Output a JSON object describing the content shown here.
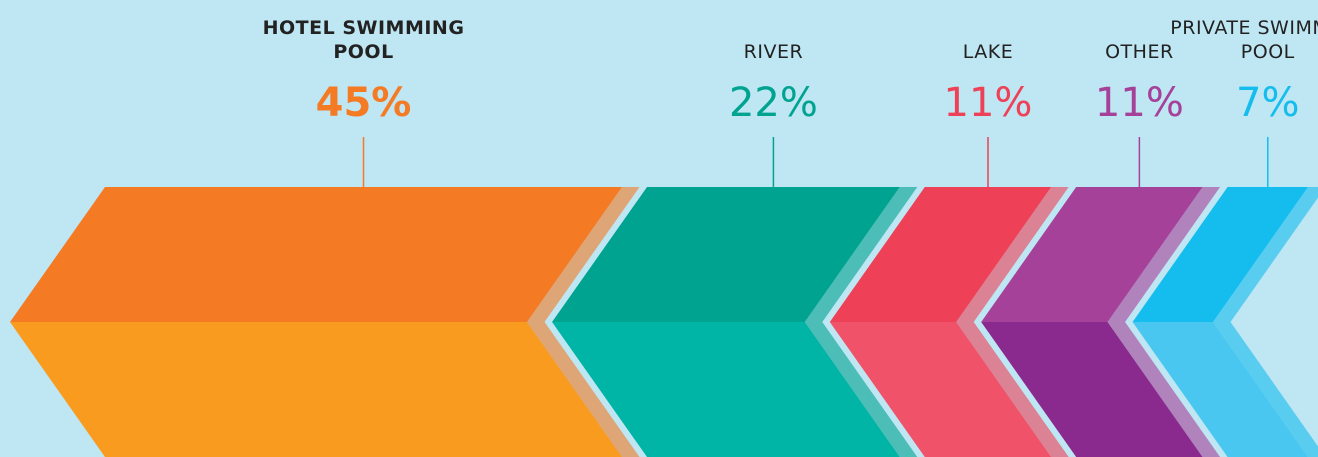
{
  "chart_data": {
    "type": "chevron",
    "categories": [
      "HOTEL SWIMMING POOL",
      "RIVER",
      "LAKE",
      "OTHER",
      "PRIVATE SWIMMING POOL"
    ],
    "values": [
      45,
      22,
      11,
      11,
      7
    ],
    "value_labels": [
      "45%",
      "22%",
      "11%",
      "11%",
      "7%"
    ],
    "colors": [
      "#f47a24",
      "#00a390",
      "#ee4056",
      "#a6419a",
      "#14bdee"
    ],
    "bottom_colors": [
      "#f99b1f",
      "#00b5a5",
      "#f05369",
      "#8b2a8e",
      "#4ac7f0"
    ]
  }
}
